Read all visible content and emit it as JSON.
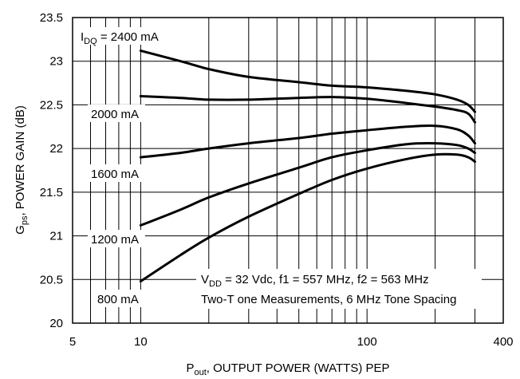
{
  "chart_data": {
    "type": "line",
    "x_scale": "log",
    "xlim": [
      5,
      400
    ],
    "ylim": [
      20,
      23.5
    ],
    "grid": true,
    "xlabel_main": "P",
    "xlabel_sub": "out",
    "xlabel_rest": ", OUTPUT POWER (WATTS) PEP",
    "ylabel_main": "G",
    "ylabel_sub": "ps",
    "ylabel_rest": ", POWER GAIN (dB)",
    "x_ticks": [
      {
        "value": 5,
        "label": "5"
      },
      {
        "value": 10,
        "label": "10"
      },
      {
        "value": 100,
        "label": "100"
      },
      {
        "value": 400,
        "label": "400"
      }
    ],
    "y_ticks": [
      {
        "value": 20,
        "label": "20"
      },
      {
        "value": 20.5,
        "label": "20.5"
      },
      {
        "value": 21,
        "label": "21"
      },
      {
        "value": 21.5,
        "label": "21.5"
      },
      {
        "value": 22,
        "label": "22"
      },
      {
        "value": 22.5,
        "label": "22.5"
      },
      {
        "value": 23,
        "label": "23"
      },
      {
        "value": 23.5,
        "label": "23.5"
      }
    ],
    "series": [
      {
        "name": "2400 mA",
        "x": [
          10,
          15,
          20,
          30,
          50,
          70,
          100,
          150,
          200,
          250,
          280,
          300
        ],
        "y": [
          23.12,
          23.0,
          22.91,
          22.82,
          22.76,
          22.72,
          22.7,
          22.66,
          22.62,
          22.56,
          22.5,
          22.42
        ]
      },
      {
        "name": "2000 mA",
        "x": [
          10,
          15,
          20,
          30,
          50,
          70,
          100,
          150,
          200,
          250,
          280,
          300
        ],
        "y": [
          22.6,
          22.58,
          22.56,
          22.56,
          22.58,
          22.59,
          22.57,
          22.52,
          22.48,
          22.44,
          22.4,
          22.3
        ]
      },
      {
        "name": "1600 mA",
        "x": [
          10,
          15,
          20,
          30,
          50,
          70,
          100,
          150,
          200,
          250,
          280,
          300
        ],
        "y": [
          21.9,
          21.95,
          22.0,
          22.06,
          22.12,
          22.17,
          22.21,
          22.25,
          22.26,
          22.22,
          22.15,
          22.06
        ]
      },
      {
        "name": "1200 mA",
        "x": [
          10,
          15,
          20,
          30,
          50,
          70,
          100,
          150,
          200,
          250,
          280,
          300
        ],
        "y": [
          21.12,
          21.3,
          21.44,
          21.6,
          21.78,
          21.9,
          21.98,
          22.05,
          22.06,
          22.04,
          22.0,
          21.95
        ]
      },
      {
        "name": "800 mA",
        "x": [
          10,
          15,
          20,
          30,
          50,
          70,
          100,
          150,
          200,
          250,
          280,
          300
        ],
        "y": [
          20.48,
          20.78,
          20.98,
          21.22,
          21.48,
          21.64,
          21.77,
          21.88,
          21.93,
          21.93,
          21.9,
          21.85
        ]
      }
    ],
    "series_labels": [
      {
        "prefix": "I",
        "sub": "DQ",
        "text": " = 2400 mA"
      },
      {
        "text": "2000 mA"
      },
      {
        "text": "1600 mA"
      },
      {
        "text": "1200 mA"
      },
      {
        "text": "800 mA"
      }
    ],
    "annotations": [
      {
        "prefix": "V",
        "sub": "DD",
        "text": " = 32 Vdc, f1 = 557 MHz, f2 = 563 MHz"
      },
      {
        "text": "Two-T one Measurements, 6 MHz Tone Spacing"
      }
    ]
  }
}
